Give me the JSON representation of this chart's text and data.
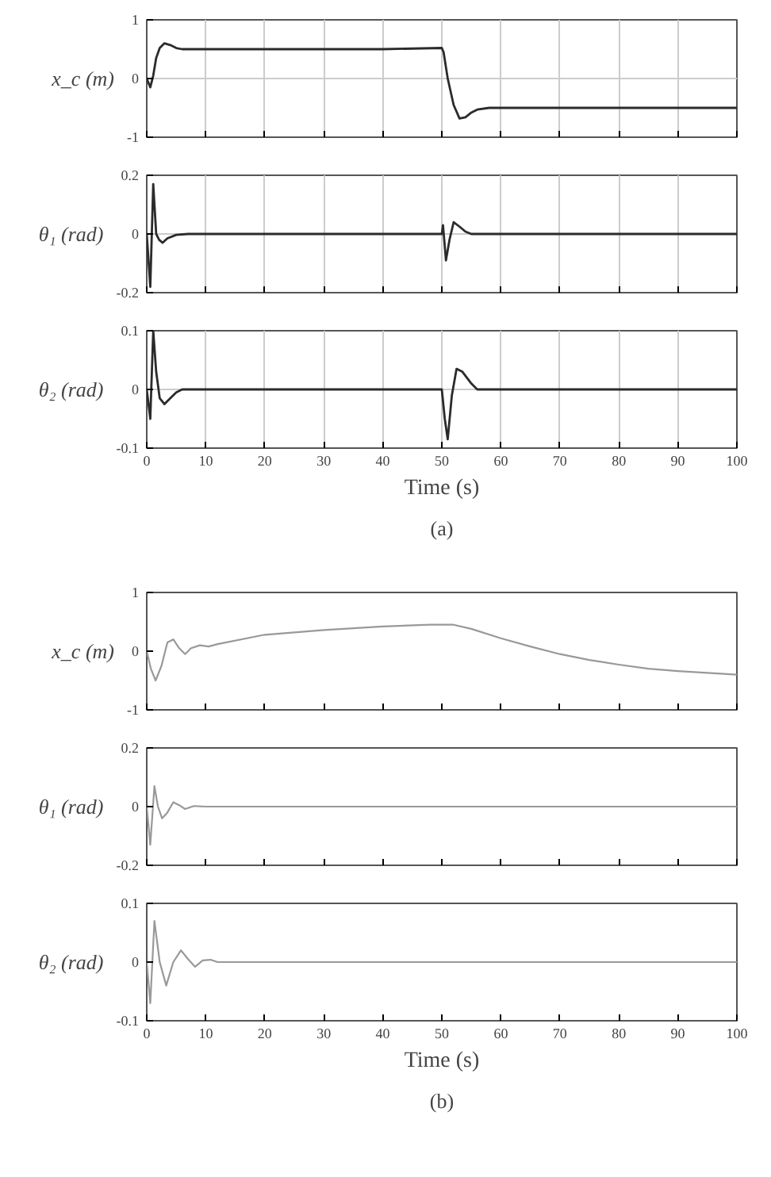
{
  "chart_data": [
    {
      "type": "line",
      "ylabel": "x_c (m)",
      "xlim": [
        0,
        100
      ],
      "xticks": [
        0,
        10,
        20,
        30,
        40,
        50,
        60,
        70,
        80,
        90,
        100
      ],
      "ylim": [
        -1,
        1
      ],
      "yticks": [
        -1,
        0,
        1
      ],
      "grid": true,
      "tick_labels": "y",
      "series": [
        {
          "color": "#2b2b2b",
          "x": [
            0,
            0.6,
            1.1,
            1.6,
            2.2,
            3,
            4,
            5,
            6,
            8,
            20,
            40,
            50,
            50.3,
            51,
            52,
            53,
            54,
            55,
            56,
            58,
            60,
            80,
            100
          ],
          "values": [
            0,
            -0.15,
            0.05,
            0.35,
            0.52,
            0.6,
            0.57,
            0.52,
            0.5,
            0.5,
            0.5,
            0.5,
            0.52,
            0.45,
            0.0,
            -0.45,
            -0.68,
            -0.66,
            -0.58,
            -0.53,
            -0.5,
            -0.5,
            -0.5,
            -0.5
          ]
        }
      ]
    },
    {
      "type": "line",
      "ylabel": "θ₁ (rad)",
      "xlim": [
        0,
        100
      ],
      "xticks": [
        0,
        10,
        20,
        30,
        40,
        50,
        60,
        70,
        80,
        90,
        100
      ],
      "ylim": [
        -0.2,
        0.2
      ],
      "yticks": [
        -0.2,
        0,
        0.2
      ],
      "grid": true,
      "tick_labels": "y",
      "series": [
        {
          "color": "#2b2b2b",
          "x": [
            0,
            0.6,
            1.1,
            1.6,
            2.1,
            2.7,
            3.5,
            5,
            7,
            20,
            40,
            50,
            50.2,
            50.7,
            51.3,
            52,
            53,
            54,
            55,
            57,
            60,
            80,
            100
          ],
          "values": [
            0,
            -0.18,
            0.17,
            0.0,
            -0.02,
            -0.03,
            -0.015,
            -0.003,
            0,
            0,
            0,
            0,
            0.03,
            -0.09,
            -0.02,
            0.04,
            0.025,
            0.008,
            0.0,
            0,
            0,
            0,
            0
          ]
        }
      ]
    },
    {
      "type": "line",
      "ylabel": "θ₂ (rad)",
      "xlabel": "Time (s)",
      "annotations": [
        "(a)"
      ],
      "xlim": [
        0,
        100
      ],
      "xticks": [
        0,
        10,
        20,
        30,
        40,
        50,
        60,
        70,
        80,
        90,
        100
      ],
      "ylim": [
        -0.1,
        0.1
      ],
      "yticks": [
        -0.1,
        0,
        0.1
      ],
      "grid": true,
      "series": [
        {
          "color": "#2b2b2b",
          "x": [
            0,
            0.6,
            1.1,
            1.6,
            2.2,
            3,
            4,
            5,
            6,
            8,
            20,
            40,
            50,
            50.5,
            51,
            51.7,
            52.5,
            53.5,
            55,
            56,
            58,
            60,
            80,
            100
          ],
          "values": [
            0,
            -0.05,
            0.1,
            0.03,
            -0.015,
            -0.025,
            -0.015,
            -0.005,
            0,
            0,
            0,
            0,
            0,
            -0.05,
            -0.085,
            -0.01,
            0.035,
            0.03,
            0.01,
            0.0,
            0,
            0,
            0,
            0
          ]
        }
      ]
    },
    {
      "type": "line",
      "ylabel": "x_c (m)",
      "xlim": [
        0,
        100
      ],
      "xticks": [
        0,
        10,
        20,
        30,
        40,
        50,
        60,
        70,
        80,
        90,
        100
      ],
      "ylim": [
        -1,
        1
      ],
      "yticks": [
        -1,
        0,
        1
      ],
      "grid": false,
      "tick_labels": "y",
      "series": [
        {
          "color": "#999999",
          "x": [
            0,
            0.7,
            1.5,
            2.5,
            3.5,
            4.5,
            5.5,
            6.5,
            7.5,
            9,
            10.5,
            12,
            20,
            30,
            40,
            48,
            52,
            55,
            60,
            65,
            70,
            75,
            80,
            85,
            90,
            95,
            100
          ],
          "values": [
            0,
            -0.3,
            -0.5,
            -0.25,
            0.15,
            0.2,
            0.05,
            -0.05,
            0.05,
            0.1,
            0.08,
            0.12,
            0.28,
            0.36,
            0.42,
            0.45,
            0.45,
            0.38,
            0.22,
            0.08,
            -0.05,
            -0.15,
            -0.23,
            -0.3,
            -0.34,
            -0.37,
            -0.4
          ]
        }
      ]
    },
    {
      "type": "line",
      "ylabel": "θ₁ (rad)",
      "xlim": [
        0,
        100
      ],
      "xticks": [
        0,
        10,
        20,
        30,
        40,
        50,
        60,
        70,
        80,
        90,
        100
      ],
      "ylim": [
        -0.2,
        0.2
      ],
      "yticks": [
        -0.2,
        0,
        0.2
      ],
      "grid": false,
      "tick_labels": "y",
      "series": [
        {
          "color": "#999999",
          "x": [
            0,
            0.6,
            1.3,
            1.9,
            2.6,
            3.5,
            4.5,
            5.5,
            6.5,
            8,
            10,
            20,
            50,
            100
          ],
          "values": [
            0,
            -0.13,
            0.07,
            0.0,
            -0.04,
            -0.02,
            0.015,
            0.005,
            -0.008,
            0.002,
            0,
            0,
            0,
            0
          ]
        }
      ]
    },
    {
      "type": "line",
      "ylabel": "θ₂ (rad)",
      "xlabel": "Time (s)",
      "annotations": [
        "(b)"
      ],
      "xlim": [
        0,
        100
      ],
      "xticks": [
        0,
        10,
        20,
        30,
        40,
        50,
        60,
        70,
        80,
        90,
        100
      ],
      "ylim": [
        -0.1,
        0.1
      ],
      "yticks": [
        -0.1,
        0,
        0.1
      ],
      "grid": false,
      "series": [
        {
          "color": "#999999",
          "x": [
            0,
            0.6,
            1.3,
            2.2,
            3.3,
            4.5,
            5.8,
            7,
            8.2,
            9.5,
            10.8,
            12,
            20,
            50,
            100
          ],
          "values": [
            0,
            -0.07,
            0.07,
            0.0,
            -0.04,
            0.0,
            0.02,
            0.005,
            -0.008,
            0.003,
            0.004,
            0,
            0,
            0,
            0
          ]
        }
      ]
    }
  ]
}
